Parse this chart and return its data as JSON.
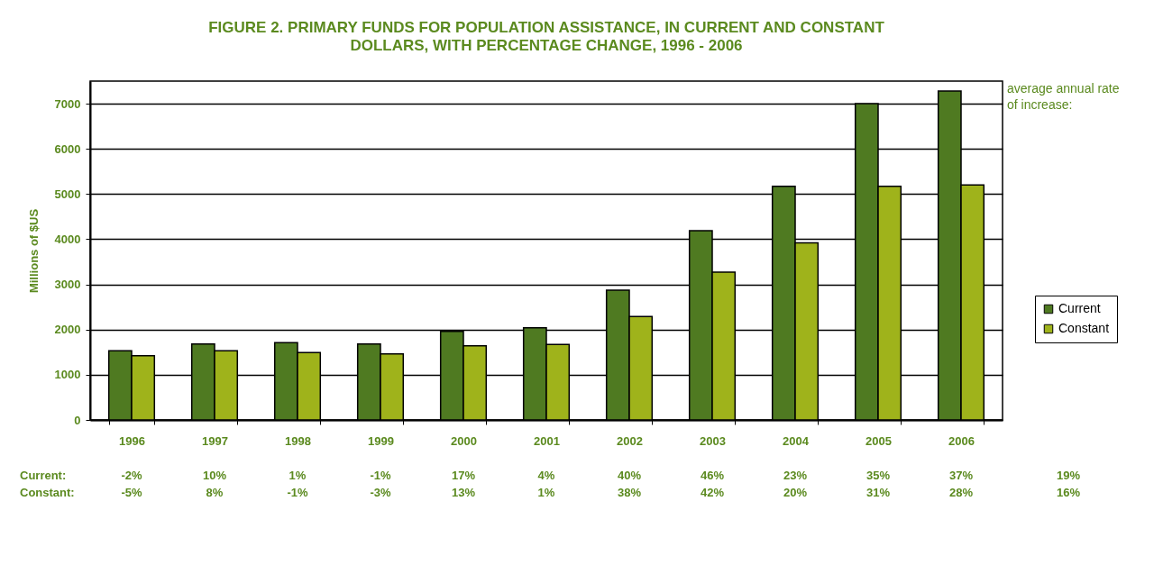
{
  "chart_data": {
    "type": "bar",
    "title": "FIGURE 2. PRIMARY FUNDS FOR POPULATION ASSISTANCE, IN CURRENT AND CONSTANT DOLLARS, WITH PERCENTAGE CHANGE, 1996 - 2006",
    "ylabel": "Millions of $US",
    "categories": [
      "1996",
      "1997",
      "1998",
      "1999",
      "2000",
      "2001",
      "2002",
      "2003",
      "2004",
      "2005",
      "2006"
    ],
    "series": [
      {
        "name": "Current",
        "color": "#4f7a21",
        "values": [
          1530,
          1680,
          1710,
          1680,
          1960,
          2040,
          2870,
          4190,
          5170,
          7000,
          7280
        ]
      },
      {
        "name": "Constant",
        "color": "#9fb31b",
        "values": [
          1420,
          1530,
          1490,
          1460,
          1640,
          1670,
          2290,
          3270,
          3920,
          5170,
          5200
        ]
      }
    ],
    "ylim": [
      0,
      7500
    ],
    "yticks": [
      0,
      1000,
      2000,
      3000,
      4000,
      5000,
      6000,
      7000
    ],
    "grid": "y",
    "legend": "right",
    "annotations": [
      "average annual rate of increase:",
      "Current:",
      "-2%",
      "10%",
      "1%",
      "-1%",
      "17%",
      "4%",
      "40%",
      "46%",
      "23%",
      "35%",
      "37%",
      "19%",
      "Constant:",
      "-5%",
      "8%",
      "-1%",
      "-3%",
      "13%",
      "1%",
      "38%",
      "42%",
      "20%",
      "31%",
      "28%",
      "16%"
    ]
  }
}
